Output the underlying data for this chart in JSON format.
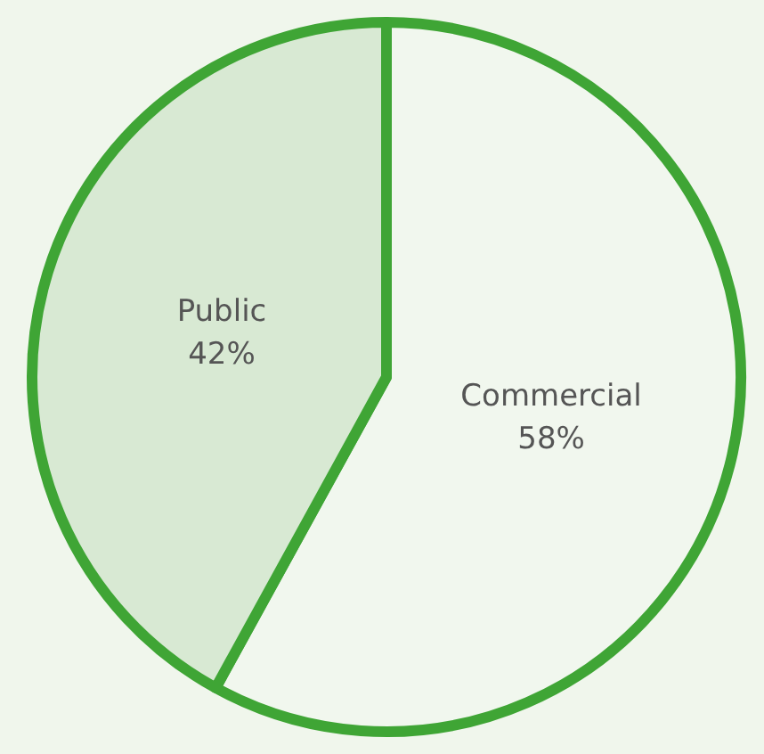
{
  "chart_data": {
    "type": "pie",
    "categories": [
      "Commercial",
      "Public"
    ],
    "values": [
      58,
      42
    ],
    "colors": [
      "#f1f7ee",
      "#d8e9d3"
    ],
    "value_labels": [
      "58%",
      "42%"
    ],
    "legend": false
  }
}
